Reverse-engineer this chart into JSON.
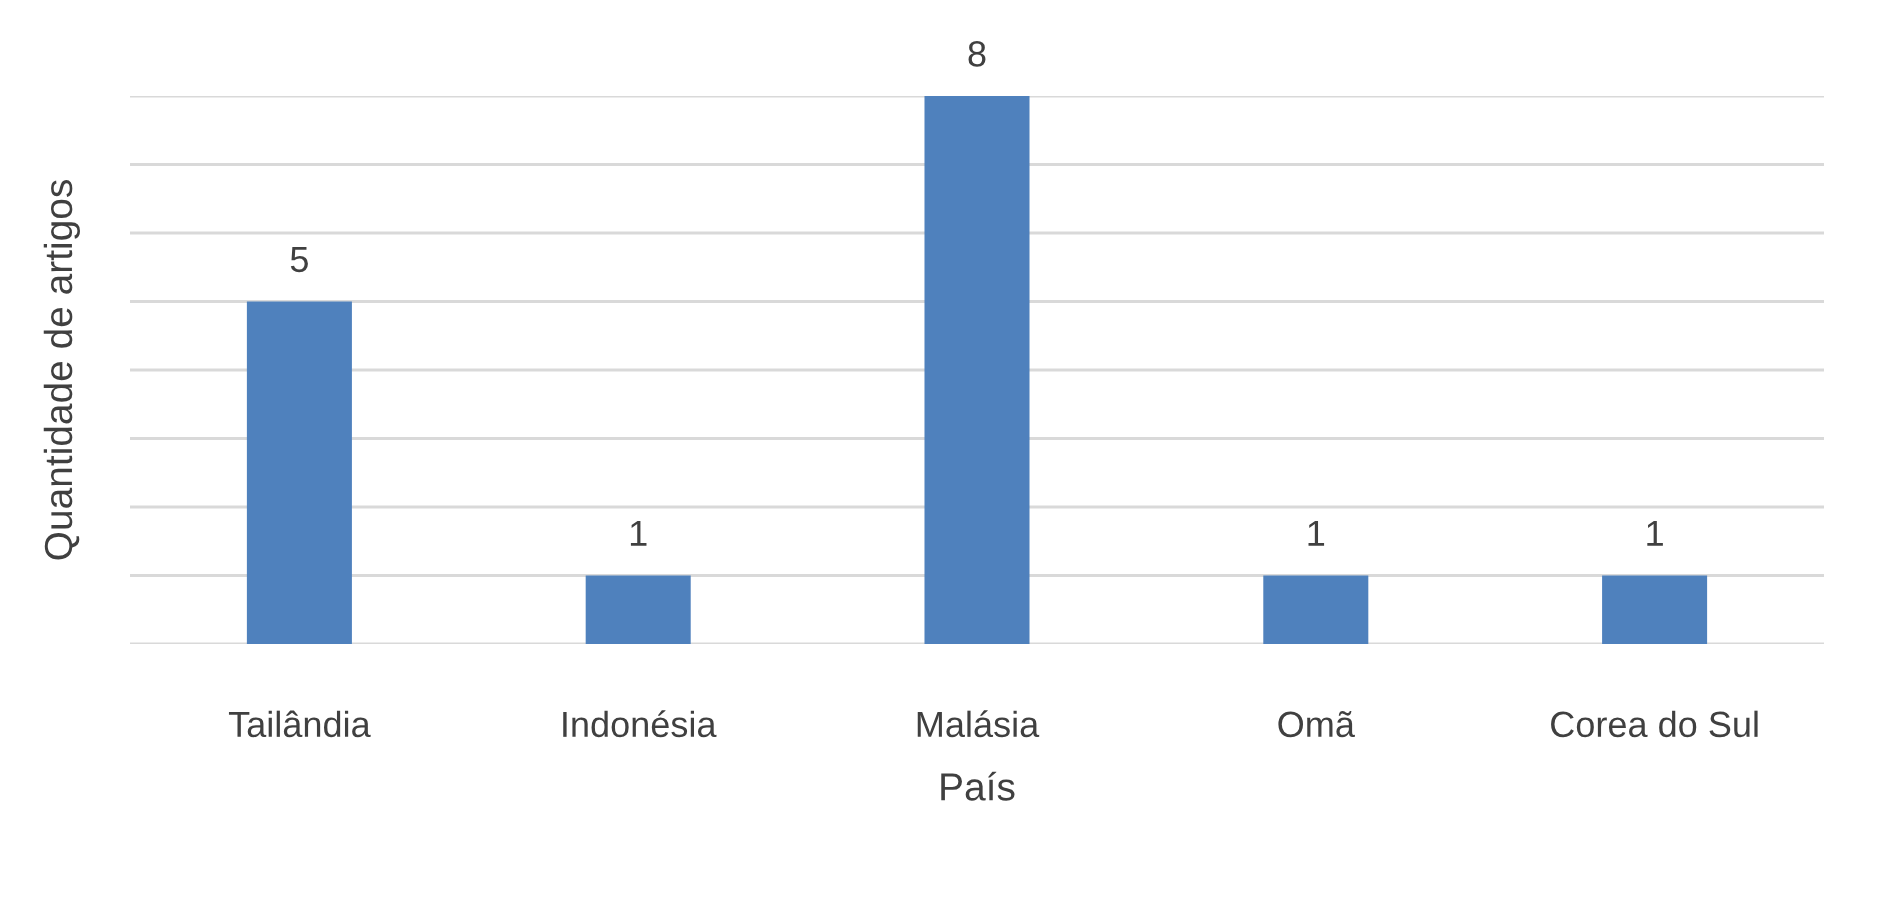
{
  "chart_data": {
    "type": "bar",
    "xlabel": "País",
    "ylabel": "Quantidade de artigos",
    "categories": [
      "Tailândia",
      "Indonésia",
      "Malásia",
      "Omã",
      "Corea do Sul"
    ],
    "values": [
      5,
      1,
      8,
      1,
      1
    ],
    "color": "#4f81bd",
    "data_labels": true,
    "ylim": [
      0,
      8
    ],
    "yticks": [
      {
        "value": 0,
        "label": null
      },
      {
        "value": 1,
        "label": null
      },
      {
        "value": 2,
        "label": null
      },
      {
        "value": 3,
        "label": null
      },
      {
        "value": 4,
        "label": null
      },
      {
        "value": 5,
        "label": null
      },
      {
        "value": 6,
        "label": null
      },
      {
        "value": 7,
        "label": null
      },
      {
        "value": 8,
        "label": null
      }
    ],
    "grid": "y",
    "tick_labels": "x"
  }
}
